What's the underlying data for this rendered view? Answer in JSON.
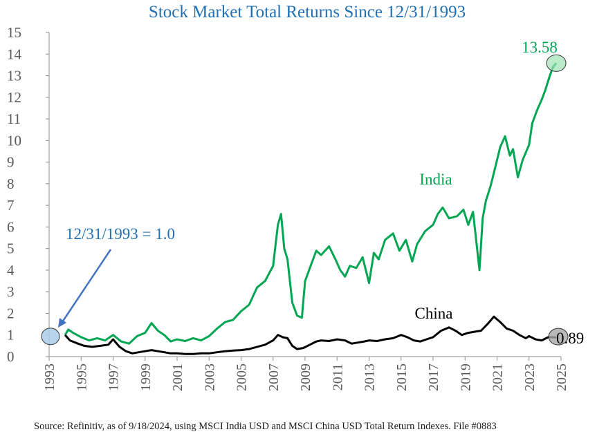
{
  "chart_data": {
    "type": "line",
    "title": "Stock Market Total Returns Since 12/31/1993",
    "xlim": [
      1993,
      2025
    ],
    "ylim": [
      0,
      15
    ],
    "xticks": [
      1993,
      1995,
      1997,
      1999,
      2001,
      2003,
      2005,
      2007,
      2009,
      2011,
      2013,
      2015,
      2017,
      2019,
      2021,
      2023,
      2025
    ],
    "yticks": [
      0,
      1,
      2,
      3,
      4,
      5,
      6,
      7,
      8,
      9,
      10,
      11,
      12,
      13,
      14,
      15
    ],
    "xtick_labels": [
      "1993",
      "1995",
      "1997",
      "1999",
      "2001",
      "2003",
      "2005",
      "2007",
      "2009",
      "2011",
      "2013",
      "2015",
      "2017",
      "2019",
      "2021",
      "2023",
      "2025"
    ],
    "ytick_labels": [
      "0",
      "1",
      "2",
      "3",
      "4",
      "5",
      "6",
      "7",
      "8",
      "9",
      "10",
      "11",
      "12",
      "13",
      "14",
      "15"
    ],
    "series": [
      {
        "name": "India",
        "color": "#00a651",
        "x": [
          1994.0,
          1994.2,
          1994.5,
          1995.0,
          1995.5,
          1996.0,
          1996.5,
          1997.0,
          1997.5,
          1998.0,
          1998.5,
          1999.0,
          1999.4,
          1999.8,
          2000.2,
          2000.6,
          2001.0,
          2001.5,
          2002.0,
          2002.5,
          2003.0,
          2003.5,
          2004.0,
          2004.5,
          2005.0,
          2005.5,
          2006.0,
          2006.5,
          2007.0,
          2007.3,
          2007.5,
          2007.7,
          2007.9,
          2008.2,
          2008.5,
          2008.8,
          2009.0,
          2009.3,
          2009.7,
          2010.0,
          2010.5,
          2010.9,
          2011.2,
          2011.5,
          2011.8,
          2012.2,
          2012.6,
          2013.0,
          2013.3,
          2013.6,
          2014.0,
          2014.5,
          2014.9,
          2015.3,
          2015.7,
          2016.0,
          2016.5,
          2017.0,
          2017.3,
          2017.6,
          2018.0,
          2018.5,
          2018.9,
          2019.2,
          2019.5,
          2019.9,
          2020.1,
          2020.3,
          2020.6,
          2020.9,
          2021.2,
          2021.5,
          2021.8,
          2022.0,
          2022.3,
          2022.6,
          2023.0,
          2023.2,
          2023.5,
          2023.8,
          2024.0,
          2024.3,
          2024.5,
          2024.7
        ],
        "values": [
          1.0,
          1.25,
          1.1,
          0.9,
          0.75,
          0.85,
          0.75,
          1.0,
          0.7,
          0.6,
          0.95,
          1.1,
          1.55,
          1.2,
          1.0,
          0.7,
          0.8,
          0.72,
          0.85,
          0.75,
          0.95,
          1.3,
          1.6,
          1.7,
          2.1,
          2.4,
          3.2,
          3.5,
          4.2,
          6.1,
          6.6,
          5.0,
          4.5,
          2.5,
          1.9,
          1.8,
          3.5,
          4.1,
          4.9,
          4.7,
          5.1,
          4.5,
          4.0,
          3.7,
          4.2,
          4.1,
          4.6,
          3.4,
          4.8,
          4.5,
          5.4,
          5.7,
          4.9,
          5.4,
          4.4,
          5.2,
          5.8,
          6.1,
          6.6,
          6.9,
          6.4,
          6.5,
          6.8,
          6.1,
          6.7,
          4.0,
          6.4,
          7.2,
          7.9,
          8.8,
          9.7,
          10.2,
          9.3,
          9.6,
          8.3,
          9.1,
          9.8,
          10.8,
          11.4,
          11.9,
          12.3,
          13.0,
          13.4,
          13.58
        ]
      },
      {
        "name": "China",
        "color": "#000000",
        "x": [
          1994.0,
          1994.3,
          1994.8,
          1995.2,
          1995.7,
          1996.2,
          1996.7,
          1997.0,
          1997.4,
          1997.8,
          1998.2,
          1998.6,
          1999.0,
          1999.4,
          1999.8,
          2000.2,
          2000.6,
          2001.0,
          2001.5,
          2002.0,
          2002.5,
          2003.0,
          2003.5,
          2004.0,
          2004.5,
          2005.0,
          2005.5,
          2006.0,
          2006.5,
          2007.0,
          2007.3,
          2007.6,
          2007.9,
          2008.2,
          2008.5,
          2008.9,
          2009.3,
          2009.7,
          2010.0,
          2010.5,
          2011.0,
          2011.5,
          2011.9,
          2012.3,
          2012.7,
          2013.0,
          2013.5,
          2014.0,
          2014.5,
          2015.0,
          2015.4,
          2015.8,
          2016.2,
          2016.6,
          2017.0,
          2017.5,
          2018.0,
          2018.4,
          2018.8,
          2019.2,
          2019.6,
          2020.0,
          2020.4,
          2020.8,
          2021.2,
          2021.6,
          2022.0,
          2022.4,
          2022.8,
          2023.0,
          2023.4,
          2023.8,
          2024.2,
          2024.7
        ],
        "values": [
          1.0,
          0.75,
          0.6,
          0.5,
          0.45,
          0.5,
          0.55,
          0.8,
          0.45,
          0.25,
          0.15,
          0.2,
          0.25,
          0.3,
          0.25,
          0.2,
          0.15,
          0.15,
          0.12,
          0.12,
          0.15,
          0.15,
          0.2,
          0.25,
          0.28,
          0.3,
          0.35,
          0.45,
          0.55,
          0.75,
          1.0,
          0.9,
          0.85,
          0.5,
          0.35,
          0.4,
          0.55,
          0.7,
          0.75,
          0.72,
          0.8,
          0.75,
          0.6,
          0.65,
          0.7,
          0.75,
          0.72,
          0.8,
          0.85,
          1.0,
          0.9,
          0.75,
          0.7,
          0.8,
          0.9,
          1.2,
          1.35,
          1.2,
          1.0,
          1.1,
          1.15,
          1.2,
          1.5,
          1.85,
          1.6,
          1.3,
          1.2,
          1.0,
          0.85,
          0.95,
          0.8,
          0.75,
          0.9,
          0.89
        ]
      }
    ],
    "annotations": {
      "india_label": "India",
      "china_label": "China",
      "baseline_label": "12/31/1993 = 1.0",
      "baseline_point": {
        "x": 1993.0,
        "y": 1.0
      },
      "india_end_label": "13.58",
      "india_end_point": {
        "x": 2024.7,
        "y": 13.58
      },
      "china_end_label": "0.89",
      "china_end_point": {
        "x": 2024.7,
        "y": 0.89
      }
    },
    "colors": {
      "title": "#1f6fb5",
      "baseline_annotation": "#1f6fb5",
      "arrow": "#4472c4",
      "baseline_circle_fill": "#a9cde8",
      "india_end_circle_fill": "#9ee2b4",
      "china_end_circle_fill": "#a6a6a6",
      "axis": "#8c8c8c",
      "tick_text": "#595959"
    }
  },
  "source_note": "Source: Refinitiv, as of 9/18/2024, using MSCI India USD and MSCI China USD Total Return Indexes. File #0883"
}
